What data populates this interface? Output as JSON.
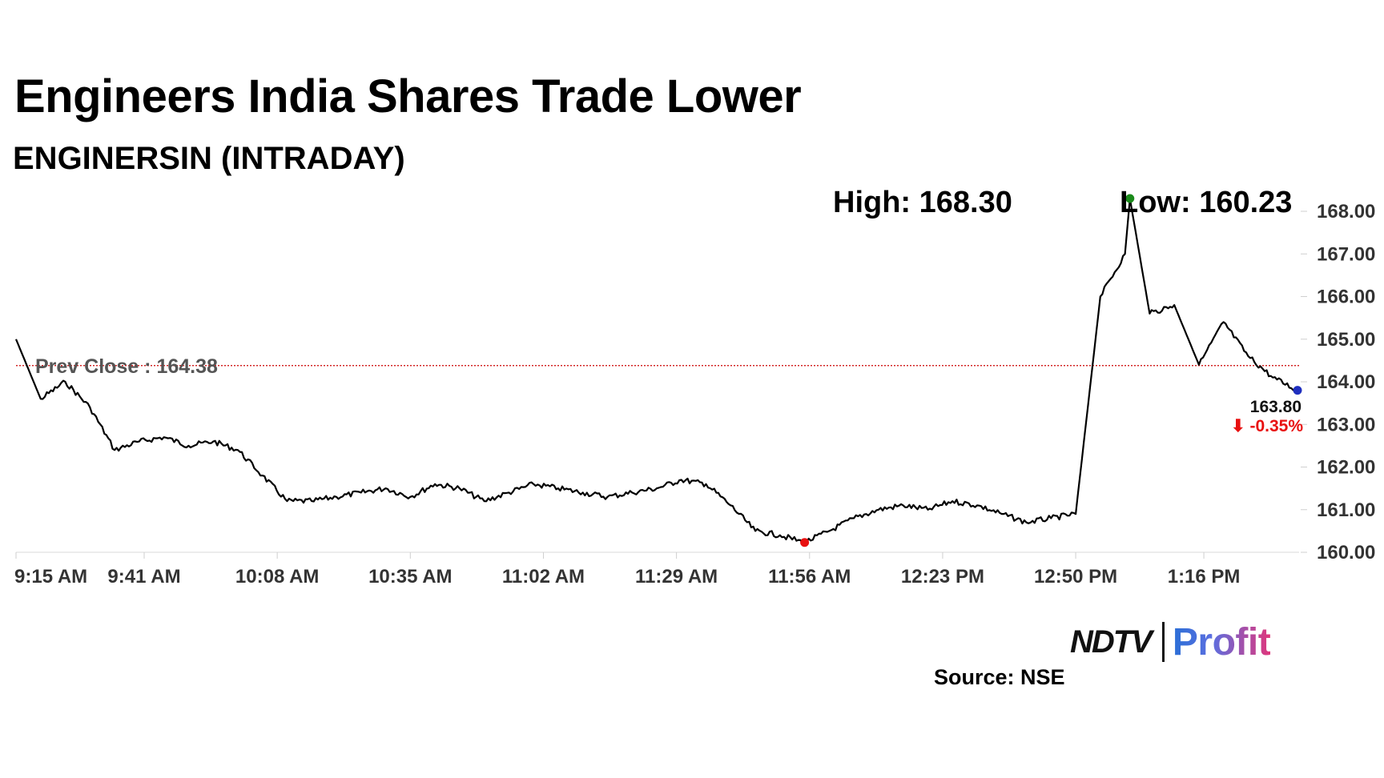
{
  "header": {
    "title": "Engineers India Shares Trade Lower",
    "subtitle": "ENGINERSIN (INTRADAY)"
  },
  "footer": {
    "source": "Source: NSE",
    "logo_primary": "NDTV",
    "logo_secondary": "Profit"
  },
  "chart_data": {
    "type": "line",
    "series": [
      {
        "x": [
          "9:15 AM",
          "9:20 AM",
          "9:25 AM",
          "9:30 AM",
          "9:35 AM",
          "9:40 AM",
          "9:45 AM",
          "9:50 AM",
          "9:55 AM",
          "10:00 AM",
          "10:05 AM",
          "10:10 AM",
          "10:15 AM",
          "10:20 AM",
          "10:25 AM",
          "10:30 AM",
          "10:35 AM",
          "10:40 AM",
          "10:45 AM",
          "10:50 AM",
          "10:55 AM",
          "11:00 AM",
          "11:05 AM",
          "11:10 AM",
          "11:15 AM",
          "11:20 AM",
          "11:25 AM",
          "11:30 AM",
          "11:35 AM",
          "11:40 AM",
          "11:45 AM",
          "11:50 AM",
          "11:55 AM",
          "12:00 PM",
          "12:05 PM",
          "12:10 PM",
          "12:15 PM",
          "12:20 PM",
          "12:25 PM",
          "12:30 PM",
          "12:35 PM",
          "12:40 PM",
          "12:45 PM",
          "12:50 PM",
          "12:55 PM",
          "1:00 PM",
          "1:01 PM",
          "1:05 PM",
          "1:10 PM",
          "1:15 PM",
          "1:20 PM",
          "1:25 PM",
          "1:30 PM",
          "1:35 PM"
        ],
        "values": [
          165.0,
          163.6,
          164.0,
          163.4,
          162.4,
          162.6,
          162.7,
          162.5,
          162.6,
          162.4,
          161.8,
          161.2,
          161.2,
          161.3,
          161.4,
          161.5,
          161.3,
          161.6,
          161.5,
          161.2,
          161.4,
          161.6,
          161.5,
          161.4,
          161.3,
          161.4,
          161.5,
          161.7,
          161.6,
          161.1,
          160.5,
          160.4,
          160.23,
          160.5,
          160.8,
          161.0,
          161.1,
          161.0,
          161.2,
          161.1,
          160.9,
          160.7,
          160.8,
          160.9,
          166.0,
          167.0,
          168.3,
          165.6,
          165.8,
          164.4,
          165.4,
          164.6,
          164.1,
          163.8
        ]
      }
    ],
    "x_tick_labels": [
      "9:15 AM",
      "9:41 AM",
      "10:08 AM",
      "10:35 AM",
      "11:02 AM",
      "11:29 AM",
      "11:56 AM",
      "12:23 PM",
      "12:50 PM",
      "1:16 PM"
    ],
    "y_ticks": [
      "160.00",
      "161.00",
      "162.00",
      "163.00",
      "164.00",
      "165.00",
      "166.00",
      "167.00",
      "168.00"
    ],
    "ylim": [
      160,
      168
    ],
    "prev_close": {
      "label": "Prev Close : 164.38",
      "value": 164.38,
      "color": "#cc0000"
    },
    "high": {
      "label": "High: 168.30",
      "value": 168.3,
      "marker_color": "#1a8a1a"
    },
    "low": {
      "label": "Low: 160.23",
      "value": 160.23,
      "marker_color": "#e81010"
    },
    "last": {
      "value_label": "163.80",
      "change_label": "⬇ -0.35%",
      "value": 163.8,
      "change_color": "#e81010",
      "marker_color": "#1f2fbf"
    },
    "line_color": "#000000",
    "grid": false
  }
}
